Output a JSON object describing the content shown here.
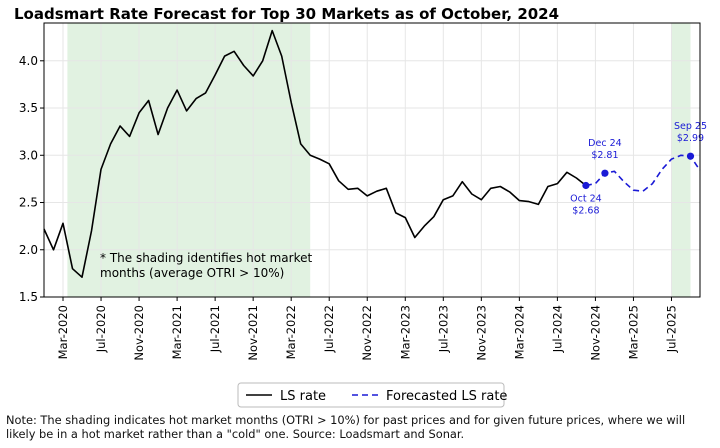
{
  "chart_data": {
    "type": "line",
    "title": "Loadsmart Rate Forecast for Top 30 Markets as of October, 2024",
    "xlabel": "",
    "ylabel": "",
    "ylim": [
      1.5,
      4.4
    ],
    "yticks": [
      1.5,
      2.0,
      2.5,
      3.0,
      3.5,
      4.0
    ],
    "ytick_labels": [
      "1.5",
      "2.0",
      "2.5",
      "3.0",
      "3.5",
      "4.0"
    ],
    "xlim": [
      "2020-01",
      "2025-10"
    ],
    "xticks": [
      "2020-03",
      "2020-07",
      "2020-11",
      "2021-03",
      "2021-07",
      "2021-11",
      "2022-03",
      "2022-07",
      "2022-11",
      "2023-03",
      "2023-07",
      "2023-11",
      "2024-03",
      "2024-07",
      "2024-11",
      "2025-03",
      "2025-07"
    ],
    "xtick_labels": [
      "Mar-2020",
      "Jul-2020",
      "Nov-2020",
      "Mar-2021",
      "Jul-2021",
      "Nov-2021",
      "Mar-2022",
      "Jul-2022",
      "Nov-2022",
      "Mar-2023",
      "Jul-2023",
      "Nov-2023",
      "Mar-2024",
      "Jul-2024",
      "Nov-2024",
      "Mar-2025",
      "Jul-2025"
    ],
    "grid": true,
    "legend_position": "bottom-center",
    "shaded_regions": [
      {
        "start": "2020-03-15",
        "end": "2022-05-01",
        "color": "#e1f2e1"
      },
      {
        "start": "2025-07-01",
        "end": "2025-09-01",
        "color": "#e1f2e1"
      }
    ],
    "series": [
      {
        "name": "LS rate",
        "color": "#000000",
        "style": "solid",
        "points": [
          [
            "2020-01-01",
            2.22
          ],
          [
            "2020-02-01",
            2.0
          ],
          [
            "2020-03-01",
            2.28
          ],
          [
            "2020-04-01",
            1.8
          ],
          [
            "2020-05-01",
            1.71
          ],
          [
            "2020-06-01",
            2.2
          ],
          [
            "2020-07-01",
            2.85
          ],
          [
            "2020-08-01",
            3.12
          ],
          [
            "2020-09-01",
            3.31
          ],
          [
            "2020-10-01",
            3.2
          ],
          [
            "2020-11-01",
            3.45
          ],
          [
            "2020-12-01",
            3.58
          ],
          [
            "2021-01-01",
            3.22
          ],
          [
            "2021-02-01",
            3.5
          ],
          [
            "2021-03-01",
            3.69
          ],
          [
            "2021-04-01",
            3.47
          ],
          [
            "2021-05-01",
            3.6
          ],
          [
            "2021-06-01",
            3.66
          ],
          [
            "2021-07-01",
            3.85
          ],
          [
            "2021-08-01",
            4.05
          ],
          [
            "2021-09-01",
            4.1
          ],
          [
            "2021-10-01",
            3.95
          ],
          [
            "2021-11-01",
            3.84
          ],
          [
            "2021-12-01",
            4.0
          ],
          [
            "2022-01-01",
            4.32
          ],
          [
            "2022-02-01",
            4.05
          ],
          [
            "2022-03-01",
            3.56
          ],
          [
            "2022-04-01",
            3.12
          ],
          [
            "2022-05-01",
            3.0
          ],
          [
            "2022-06-01",
            2.96
          ],
          [
            "2022-07-01",
            2.91
          ],
          [
            "2022-08-01",
            2.73
          ],
          [
            "2022-09-01",
            2.64
          ],
          [
            "2022-10-01",
            2.65
          ],
          [
            "2022-11-01",
            2.57
          ],
          [
            "2022-12-01",
            2.62
          ],
          [
            "2023-01-01",
            2.65
          ],
          [
            "2023-02-01",
            2.39
          ],
          [
            "2023-03-01",
            2.34
          ],
          [
            "2023-04-01",
            2.13
          ],
          [
            "2023-05-01",
            2.25
          ],
          [
            "2023-06-01",
            2.35
          ],
          [
            "2023-07-01",
            2.53
          ],
          [
            "2023-08-01",
            2.57
          ],
          [
            "2023-09-01",
            2.72
          ],
          [
            "2023-10-01",
            2.59
          ],
          [
            "2023-11-01",
            2.53
          ],
          [
            "2023-12-01",
            2.65
          ],
          [
            "2024-01-01",
            2.67
          ],
          [
            "2024-02-01",
            2.61
          ],
          [
            "2024-03-01",
            2.52
          ],
          [
            "2024-04-01",
            2.51
          ],
          [
            "2024-05-01",
            2.48
          ],
          [
            "2024-06-01",
            2.67
          ],
          [
            "2024-07-01",
            2.7
          ],
          [
            "2024-08-01",
            2.82
          ],
          [
            "2024-09-01",
            2.76
          ],
          [
            "2024-10-01",
            2.68
          ]
        ]
      },
      {
        "name": "Forecasted LS rate",
        "color": "#1a1ad6",
        "style": "dashed",
        "points": [
          [
            "2024-10-01",
            2.68
          ],
          [
            "2024-11-01",
            2.7
          ],
          [
            "2024-12-01",
            2.81
          ],
          [
            "2025-01-01",
            2.83
          ],
          [
            "2025-02-01",
            2.72
          ],
          [
            "2025-03-01",
            2.63
          ],
          [
            "2025-04-01",
            2.62
          ],
          [
            "2025-05-01",
            2.7
          ],
          [
            "2025-06-01",
            2.85
          ],
          [
            "2025-07-01",
            2.96
          ],
          [
            "2025-08-01",
            3.0
          ],
          [
            "2025-09-01",
            2.99
          ],
          [
            "2025-10-01",
            2.84
          ]
        ]
      }
    ],
    "highlight_points": [
      {
        "x": "2024-10-01",
        "y": 2.68,
        "label_date": "Oct 24",
        "label_value": "$2.68",
        "label_side": "below"
      },
      {
        "x": "2024-12-01",
        "y": 2.81,
        "label_date": "Dec 24",
        "label_value": "$2.81",
        "label_side": "above"
      },
      {
        "x": "2025-09-01",
        "y": 2.99,
        "label_date": "Sep 25",
        "label_value": "$2.99",
        "label_side": "above"
      }
    ],
    "annotation_note": [
      "* The shading identifies hot market",
      "months (average OTRI > 10%)"
    ]
  },
  "footnote": "Note: The shading indicates hot market months (OTRI > 10%) for past prices and for given future prices, where we will likely be in a hot market rather than a \"cold\" one. Source: Loadsmart and Sonar."
}
